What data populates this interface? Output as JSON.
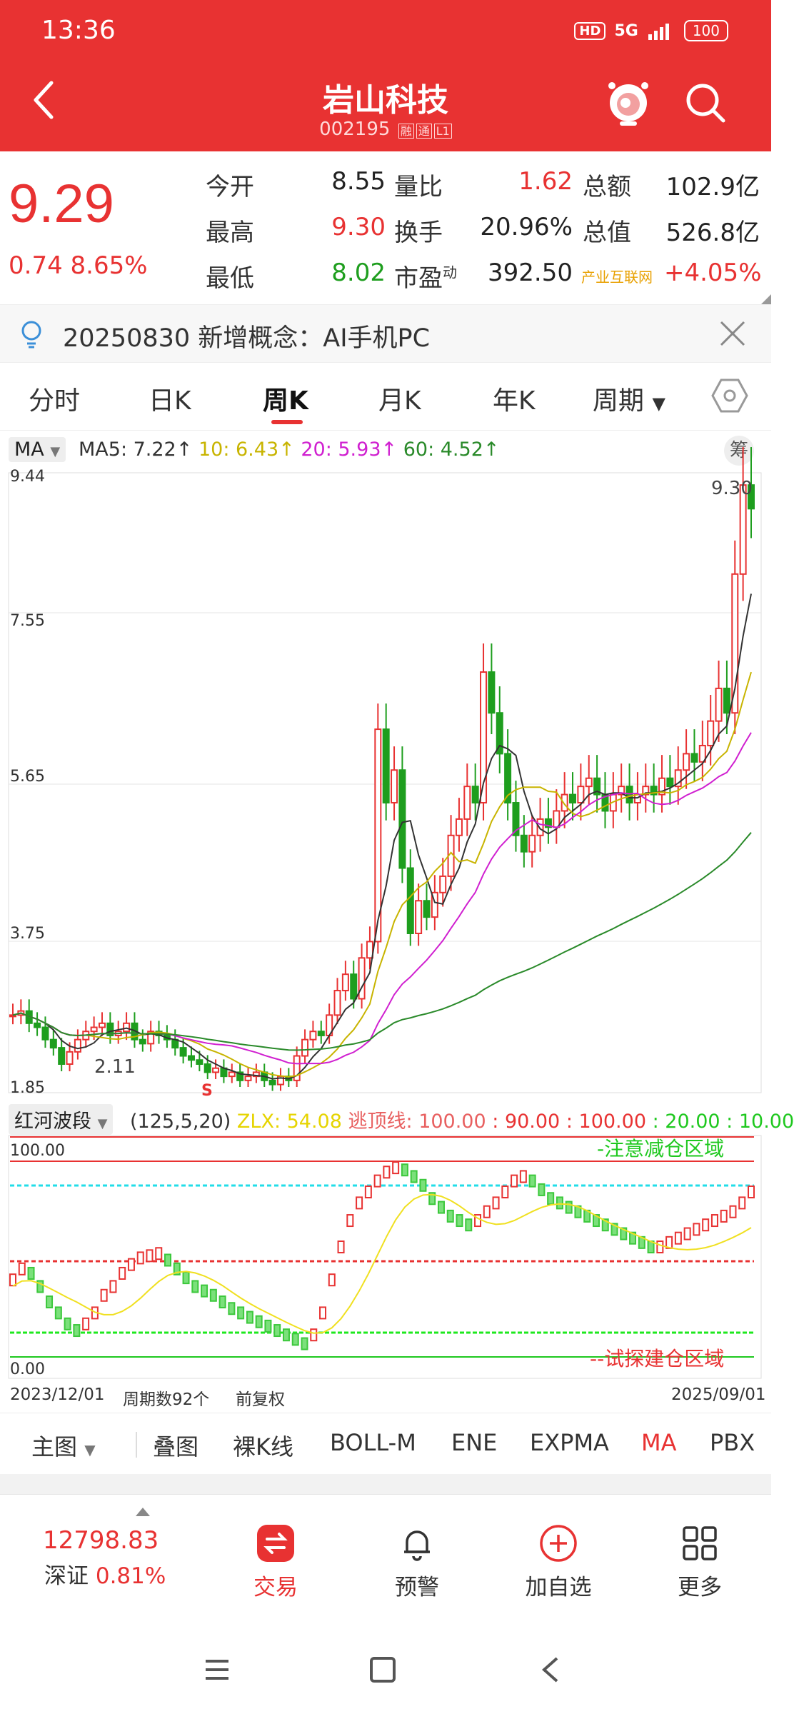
{
  "status": {
    "time": "13:36",
    "hd": "HD",
    "network": "5G",
    "battery": "100"
  },
  "header": {
    "title": "岩山科技",
    "code": "002195",
    "tag1": "融",
    "tag2": "通",
    "tag3": "L1"
  },
  "quote": {
    "price": "9.29",
    "change": "0.74  8.65%",
    "open_label": "今开",
    "open": "8.55",
    "high_label": "最高",
    "high": "9.30",
    "low_label": "最低",
    "low": "8.02",
    "volratio_label": "量比",
    "volratio": "1.62",
    "turnover_label": "换手",
    "turnover": "20.96%",
    "pe_label": "市盈",
    "pe_sup": "动",
    "pe": "392.50",
    "amount_label": "总额",
    "amount": "102.9亿",
    "mktcap_label": "总值",
    "mktcap": "526.8亿",
    "industry_label": "产业互联网",
    "industry_change": "+4.05%"
  },
  "concept": {
    "text": "20250830 新增概念：AI手机PC"
  },
  "tabs": [
    "分时",
    "日K",
    "周K",
    "月K",
    "年K",
    "周期"
  ],
  "ma": {
    "select": "MA",
    "ma5": "MA5: 7.22↑",
    "ma10": "10: 6.43↑",
    "ma20": "20: 5.93↑",
    "ma60": "60: 4.52↑",
    "chou": "筹"
  },
  "chart": {
    "y_labels": [
      "9.44",
      "7.55",
      "5.65",
      "3.75",
      "1.85"
    ],
    "high_label": "9.30",
    "low_label": "2.11",
    "s_marker": "S"
  },
  "indicator": {
    "name": "红河波段",
    "params": "(125,5,20)",
    "zlx": "ZLX: 54.08",
    "top_line": "逃顶线: 100.00",
    "v1": ": 90.00",
    "v2": ": 100.00",
    "v3": ": 20.00",
    "v4": ": 10.00",
    "top_label": "100.00",
    "bottom_label": "0.00",
    "zone_top": "-注意减仓区域",
    "zone_bottom": "--试探建仓区域"
  },
  "dates": {
    "start": "2023/12/01",
    "count": "周期数92个",
    "adj": "前复权",
    "end": "2025/09/01"
  },
  "ind_tabs": [
    "主图",
    "叠图",
    "裸K线",
    "BOLL-M",
    "ENE",
    "EXPMA",
    "MA",
    "PBX"
  ],
  "nav": {
    "index_value": "12798.83",
    "index_label": "深证",
    "index_change": "0.81%",
    "trade": "交易",
    "alert": "预警",
    "add": "加自选",
    "more": "更多"
  },
  "colors": {
    "up": "#e83232",
    "down": "#1e9e1e",
    "ma5": "#333333",
    "ma10": "#c8b400",
    "ma20": "#d020d0",
    "ma60": "#2a8a2a"
  }
}
